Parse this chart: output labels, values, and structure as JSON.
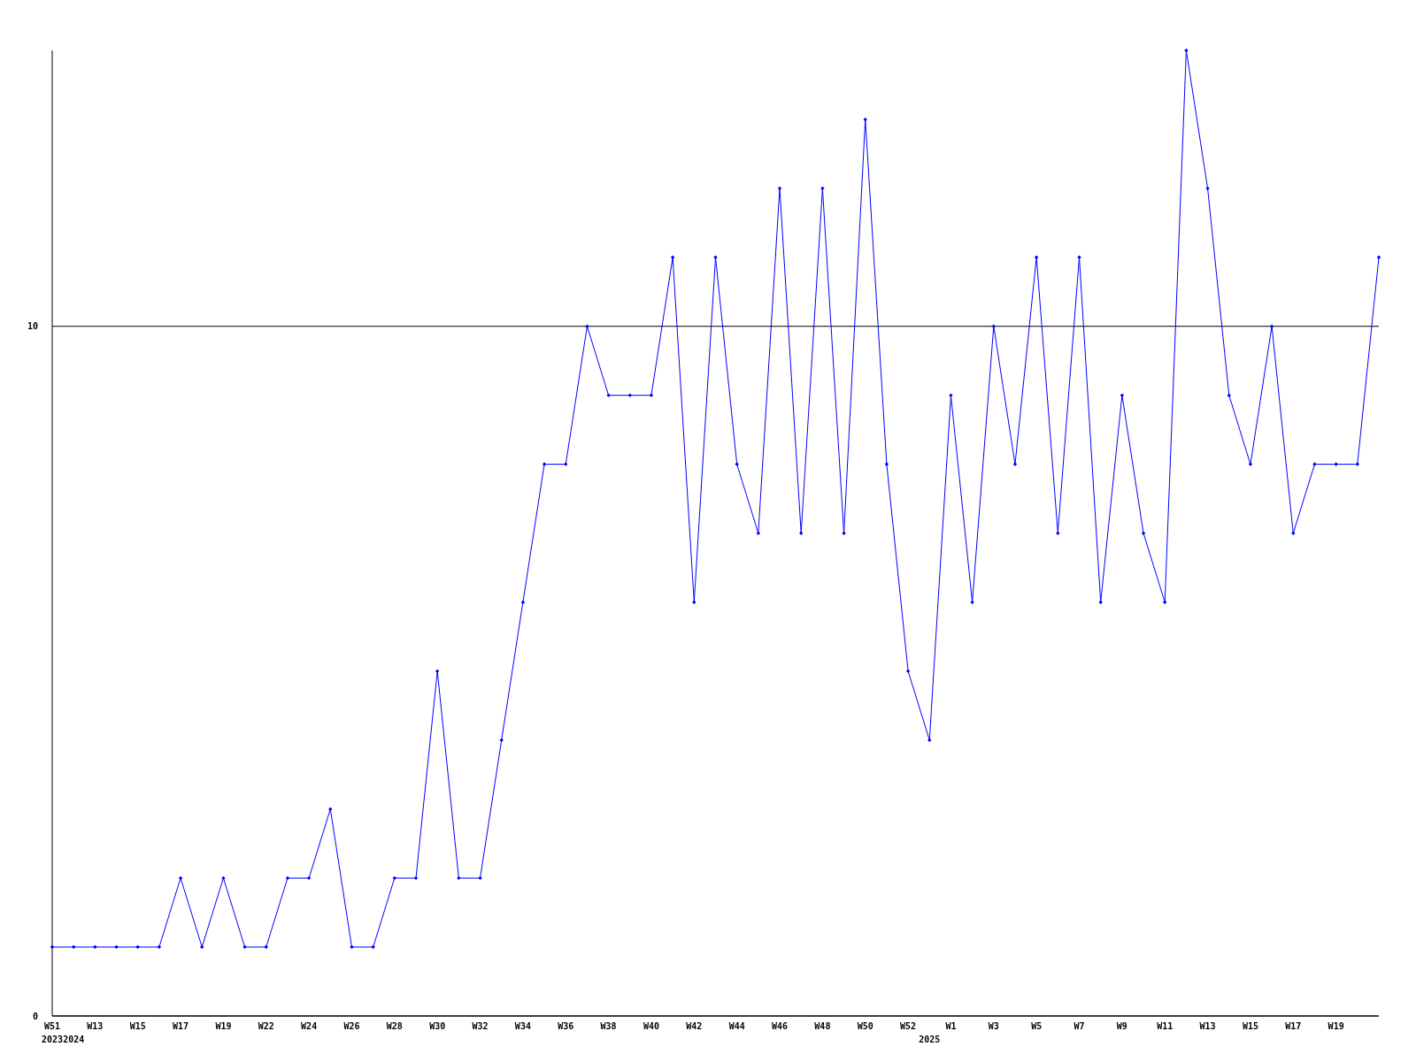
{
  "chart_data": {
    "type": "line",
    "categories": [
      "W51\n2023",
      "\n2024",
      "W13",
      null,
      "W15",
      null,
      "W17",
      null,
      "W19",
      null,
      "W22",
      null,
      "W24",
      null,
      "W26",
      null,
      "W28",
      null,
      "W30",
      null,
      "W32",
      null,
      "W34",
      null,
      "W36",
      null,
      "W38",
      null,
      "W40",
      null,
      "W42",
      null,
      "W44",
      null,
      "W46",
      null,
      "W48",
      null,
      "W50",
      null,
      "W52",
      "\n2025",
      "W1",
      null,
      "W3",
      null,
      "W5",
      null,
      "W7",
      null,
      "W9",
      null,
      "W11",
      null,
      "W13",
      null,
      "W15",
      null,
      "W17",
      null,
      "W19",
      null,
      null
    ],
    "series": [
      {
        "color": "#0000ff",
        "values": [
          1,
          1,
          1,
          1,
          1,
          1,
          2,
          1,
          2,
          1,
          1,
          2,
          2,
          3,
          1,
          1,
          2,
          2,
          5,
          2,
          2,
          4,
          6,
          8,
          8,
          10,
          9,
          9,
          9,
          11,
          6,
          11,
          8,
          7,
          12,
          7,
          12,
          7,
          13,
          8,
          5,
          4,
          9,
          6,
          10,
          8,
          11,
          7,
          11,
          6,
          9,
          7,
          6,
          14,
          12,
          9,
          8,
          10,
          7,
          8,
          8,
          8,
          11
        ]
      }
    ],
    "ylim": [
      0,
      14
    ],
    "yticks": [
      0,
      10
    ],
    "grid": "y",
    "marker": "diamond",
    "line_style": "solid"
  }
}
